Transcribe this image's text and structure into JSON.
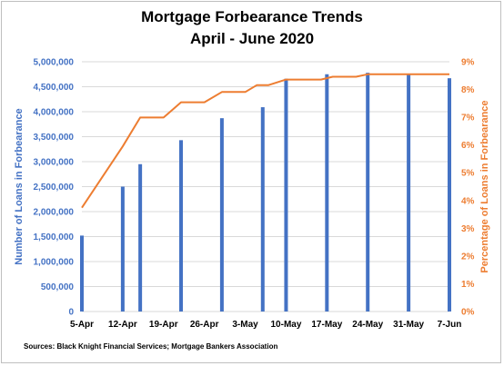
{
  "chart_data": {
    "type": "bar+line",
    "title": [
      "Mortgage Forbearance Trends",
      "April - June 2020"
    ],
    "source": "Sources: Black Knight Financial Services; Mortgage Bankers Association",
    "x_tick_labels": [
      "5-Apr",
      "12-Apr",
      "19-Apr",
      "26-Apr",
      "3-May",
      "10-May",
      "17-May",
      "24-May",
      "31-May",
      "7-Jun"
    ],
    "xlim_days": [
      0,
      63
    ],
    "y_left": {
      "label": "Number of Loans in Forbearance",
      "range": [
        0,
        5000000
      ],
      "ticks": [
        "0",
        "500,000",
        "1,000,000",
        "1,500,000",
        "2,000,000",
        "2,500,000",
        "3,000,000",
        "3,500,000",
        "4,000,000",
        "4,500,000",
        "5,000,000"
      ],
      "color": "#4472c4"
    },
    "y_right": {
      "label": "Percentage of Loans in Forbearance",
      "range": [
        0,
        9
      ],
      "ticks": [
        "0%",
        "1%",
        "2%",
        "3%",
        "4%",
        "5%",
        "6%",
        "7%",
        "8%",
        "9%"
      ],
      "color": "#ed7d31"
    },
    "bars": {
      "name": "Number of Loans in Forbearance",
      "x": [
        0,
        7,
        10,
        17,
        24,
        31,
        35,
        42,
        49,
        56,
        63
      ],
      "values": [
        1520000,
        2500000,
        2950000,
        3430000,
        3870000,
        4090000,
        4660000,
        4750000,
        4780000,
        4740000,
        4670000
      ]
    },
    "line": {
      "name": "Percentage of Loans in Forbearance",
      "x": [
        0,
        7,
        10,
        12,
        14,
        17,
        19,
        21,
        24,
        26,
        28,
        30,
        32,
        35,
        37,
        39,
        41,
        43,
        45,
        47,
        49,
        51,
        53,
        55,
        57,
        59,
        61,
        63
      ],
      "values": [
        3.74,
        5.95,
        6.99,
        6.99,
        6.99,
        7.54,
        7.54,
        7.54,
        7.91,
        7.91,
        7.91,
        8.16,
        8.16,
        8.36,
        8.36,
        8.36,
        8.36,
        8.46,
        8.46,
        8.46,
        8.55,
        8.55,
        8.55,
        8.55,
        8.55,
        8.55,
        8.55,
        8.55
      ]
    },
    "grid": true,
    "legend": "none"
  }
}
